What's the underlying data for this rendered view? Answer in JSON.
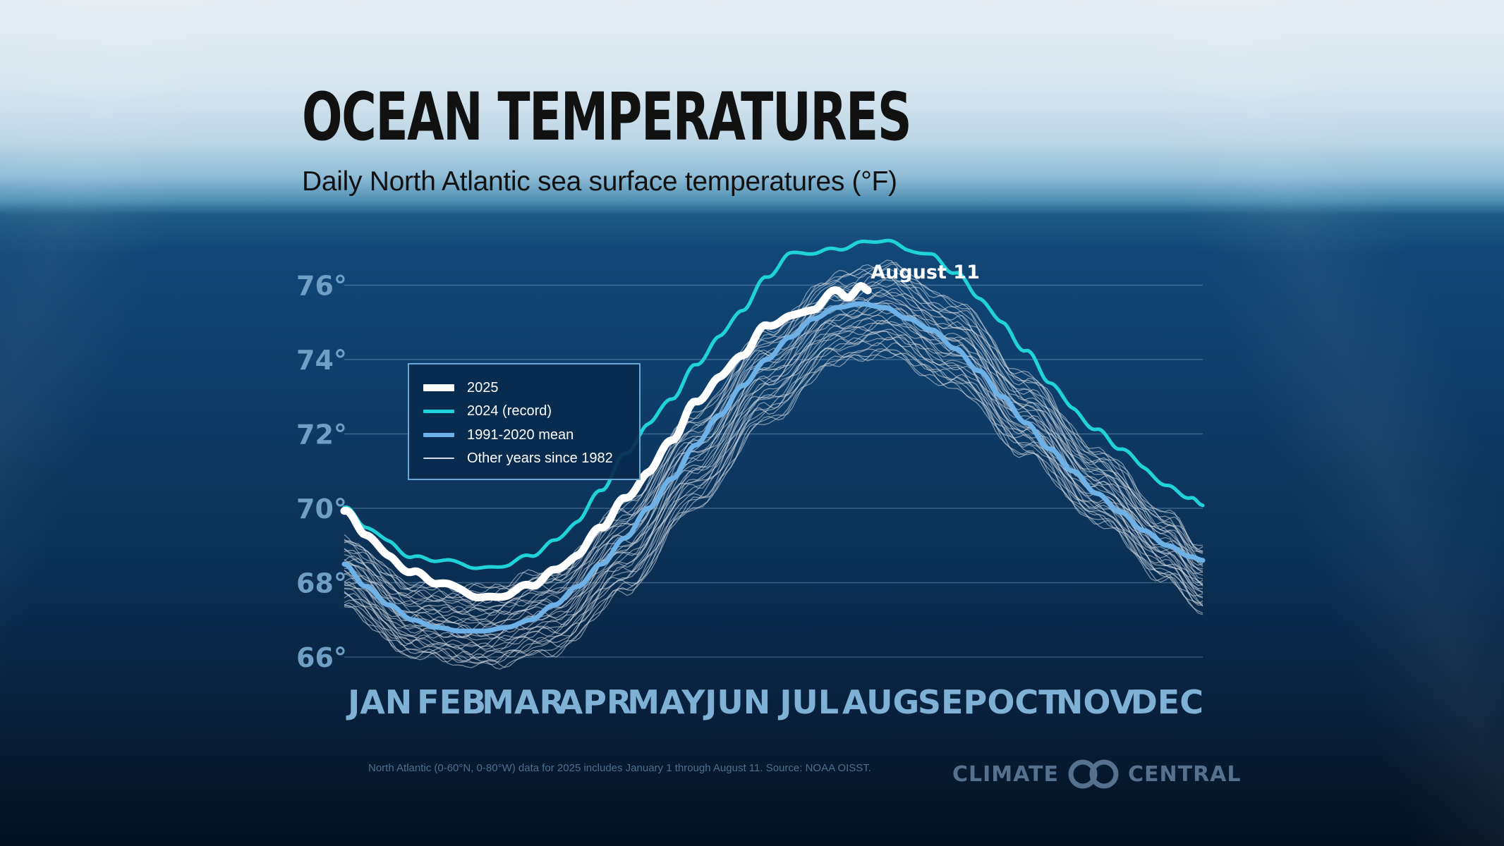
{
  "header": {
    "title": "OCEAN TEMPERATURES",
    "subtitle": "Daily North Atlantic sea surface temperatures (°F)"
  },
  "legend": {
    "items": [
      {
        "label": "2025",
        "color": "#ffffff"
      },
      {
        "label": "2024 (record)",
        "color": "#1fd3d8"
      },
      {
        "label": "1991-2020 mean",
        "color": "#6eb1e6"
      },
      {
        "label": "Other years since 1982",
        "color": "#d6dde4"
      }
    ]
  },
  "callout": {
    "label": "August 11"
  },
  "footer": {
    "note": "North Atlantic (0-60°N, 0-80°W) data for 2025 includes January 1 through August 11. Source: NOAA OISST.",
    "brand_left": "CLIMATE",
    "brand_right": "CENTRAL"
  },
  "chart_data": {
    "type": "line",
    "title": "OCEAN TEMPERATURES",
    "subtitle": "Daily North Atlantic sea surface temperatures (°F)",
    "xlabel": "",
    "ylabel": "",
    "x_unit": "day of year",
    "month_labels": [
      "JAN",
      "FEB",
      "MAR",
      "APR",
      "MAY",
      "JUN",
      "JUL",
      "AUG",
      "SEP",
      "OCT",
      "NOV",
      "DEC"
    ],
    "y_ticks": [
      66,
      68,
      70,
      72,
      74,
      76
    ],
    "y_tick_labels": [
      "66°",
      "68°",
      "70°",
      "72°",
      "74°",
      "76°"
    ],
    "xlim": [
      1,
      365
    ],
    "ylim": [
      65.6,
      77.8
    ],
    "grid": true,
    "legend_position": "left-middle",
    "annotation": {
      "text": "August 11",
      "x": 223
    },
    "series": [
      {
        "name": "2025",
        "color": "#ffffff",
        "x": [
          1,
          10,
          20,
          30,
          40,
          50,
          60,
          70,
          80,
          90,
          100,
          110,
          120,
          130,
          140,
          150,
          160,
          170,
          180,
          190,
          200,
          210,
          215,
          220,
          223
        ],
        "y": [
          69.9,
          69.3,
          68.7,
          68.3,
          68.0,
          67.8,
          67.6,
          67.7,
          67.9,
          68.3,
          68.8,
          69.5,
          70.2,
          71.0,
          71.9,
          72.8,
          73.5,
          74.2,
          74.9,
          75.1,
          75.4,
          75.9,
          75.7,
          75.9,
          75.8
        ]
      },
      {
        "name": "2024 (record)",
        "color": "#1fd3d8",
        "x": [
          1,
          10,
          20,
          30,
          40,
          50,
          60,
          70,
          80,
          90,
          100,
          110,
          120,
          130,
          140,
          150,
          160,
          170,
          180,
          190,
          200,
          210,
          220,
          230,
          240,
          250,
          260,
          270,
          280,
          290,
          300,
          310,
          320,
          330,
          340,
          350,
          360,
          365
        ],
        "y": [
          70.0,
          69.5,
          69.1,
          68.7,
          68.6,
          68.5,
          68.4,
          68.5,
          68.7,
          69.1,
          69.7,
          70.5,
          71.4,
          72.3,
          73.0,
          73.8,
          74.6,
          75.4,
          76.2,
          76.8,
          76.9,
          77.0,
          77.1,
          77.2,
          77.0,
          76.8,
          76.3,
          75.7,
          75.0,
          74.2,
          73.4,
          72.7,
          72.1,
          71.6,
          71.1,
          70.6,
          70.3,
          70.0
        ]
      },
      {
        "name": "1991-2020 mean",
        "color": "#6eb1e6",
        "x": [
          1,
          10,
          20,
          30,
          40,
          50,
          60,
          70,
          80,
          90,
          100,
          110,
          120,
          130,
          140,
          150,
          160,
          170,
          180,
          190,
          200,
          210,
          220,
          230,
          240,
          250,
          260,
          270,
          280,
          290,
          300,
          310,
          320,
          330,
          340,
          350,
          360,
          365
        ],
        "y": [
          68.5,
          67.9,
          67.4,
          67.0,
          66.8,
          66.7,
          66.7,
          66.8,
          67.0,
          67.4,
          67.9,
          68.5,
          69.2,
          70.0,
          70.8,
          71.7,
          72.5,
          73.3,
          74.0,
          74.6,
          75.1,
          75.4,
          75.5,
          75.4,
          75.1,
          74.8,
          74.3,
          73.7,
          73.0,
          72.3,
          71.6,
          71.0,
          70.4,
          69.9,
          69.4,
          69.0,
          68.7,
          68.6
        ]
      }
    ],
    "other_years": {
      "name": "Other years since 1982",
      "color": "#d6dde4",
      "envelope_x": [
        1,
        30,
        60,
        90,
        120,
        150,
        180,
        210,
        230,
        260,
        290,
        320,
        350,
        365
      ],
      "envelope_low": [
        67.3,
        66.0,
        65.7,
        66.1,
        67.7,
        70.0,
        72.3,
        73.9,
        74.1,
        73.2,
        71.4,
        69.6,
        68.0,
        67.2
      ],
      "envelope_high": [
        69.2,
        68.0,
        67.9,
        68.4,
        70.2,
        72.6,
        74.8,
        76.3,
        76.6,
        75.6,
        73.6,
        71.6,
        69.9,
        69.0
      ]
    }
  }
}
